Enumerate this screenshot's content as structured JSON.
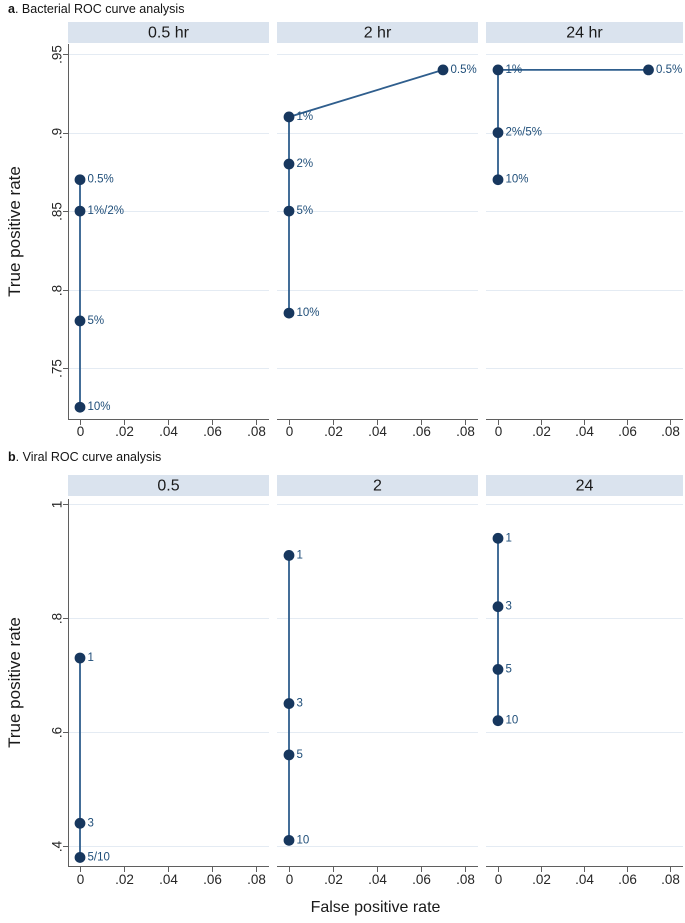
{
  "colors": {
    "marker": "#17375e",
    "line": "#2f5e8d",
    "point_label": "#1f4e79",
    "header_bg": "#dae3ee",
    "header_text": "#1a1a1a",
    "grid": "#e4ebf3",
    "axis": "#5f5f5f",
    "tick_text": "#262626",
    "axis_title_text": "#1a1a1a"
  },
  "chart_data": [
    {
      "type": "scatter",
      "title_prefix": "a",
      "title_rest": ". Bacterial ROC curve analysis",
      "xlabel": "",
      "ylabel": "True positive rate",
      "x_ticks": [
        0,
        0.02,
        0.04,
        0.06,
        0.08
      ],
      "x_tick_labels": [
        "0",
        ".02",
        ".04",
        ".06",
        ".08"
      ],
      "y_ticks": [
        0.75,
        0.8,
        0.85,
        0.9,
        0.95
      ],
      "y_tick_labels": [
        ".75",
        ".8",
        ".85",
        ".9",
        ".95"
      ],
      "xlim": [
        -0.0055,
        0.086
      ],
      "ylim": [
        0.7175,
        0.9565
      ],
      "grid": "horizontal",
      "legend": "none",
      "panels": [
        {
          "label": "0.5 hr",
          "points": [
            {
              "x": 0,
              "y": 0.87,
              "label": "0.5%"
            },
            {
              "x": 0,
              "y": 0.85,
              "label": "1%/2%"
            },
            {
              "x": 0,
              "y": 0.78,
              "label": "5%"
            },
            {
              "x": 0,
              "y": 0.725,
              "label": "10%"
            }
          ]
        },
        {
          "label": "2 hr",
          "points": [
            {
              "x": 0.07,
              "y": 0.94,
              "label": "0.5%"
            },
            {
              "x": 0,
              "y": 0.91,
              "label": "1%"
            },
            {
              "x": 0,
              "y": 0.88,
              "label": "2%"
            },
            {
              "x": 0,
              "y": 0.85,
              "label": "5%"
            },
            {
              "x": 0,
              "y": 0.785,
              "label": "10%"
            }
          ]
        },
        {
          "label": "24 hr",
          "points": [
            {
              "x": 0.07,
              "y": 0.94,
              "label": "0.5%"
            },
            {
              "x": 0,
              "y": 0.94,
              "label": "1%"
            },
            {
              "x": 0,
              "y": 0.9,
              "label": "2%/5%"
            },
            {
              "x": 0,
              "y": 0.87,
              "label": "10%"
            }
          ]
        }
      ]
    },
    {
      "type": "scatter",
      "title_prefix": "b",
      "title_rest": ". Viral ROC curve analysis",
      "xlabel": "False positive rate",
      "ylabel": "True positive rate",
      "x_ticks": [
        0,
        0.02,
        0.04,
        0.06,
        0.08
      ],
      "x_tick_labels": [
        "0",
        ".02",
        ".04",
        ".06",
        ".08"
      ],
      "y_ticks": [
        0.4,
        0.6,
        0.8,
        1
      ],
      "y_tick_labels": [
        ".4",
        ".6",
        ".8",
        "1"
      ],
      "xlim": [
        -0.0055,
        0.086
      ],
      "ylim": [
        0.365,
        1.009
      ],
      "grid": "horizontal",
      "legend": "none",
      "panels": [
        {
          "label": "0.5",
          "points": [
            {
              "x": 0,
              "y": 0.73,
              "label": "1"
            },
            {
              "x": 0,
              "y": 0.44,
              "label": "3"
            },
            {
              "x": 0,
              "y": 0.38,
              "label": "5/10"
            }
          ]
        },
        {
          "label": "2",
          "points": [
            {
              "x": 0,
              "y": 0.91,
              "label": "1"
            },
            {
              "x": 0,
              "y": 0.65,
              "label": "3"
            },
            {
              "x": 0,
              "y": 0.56,
              "label": "5"
            },
            {
              "x": 0,
              "y": 0.41,
              "label": "10"
            }
          ]
        },
        {
          "label": "24",
          "points": [
            {
              "x": 0,
              "y": 0.94,
              "label": "1"
            },
            {
              "x": 0,
              "y": 0.82,
              "label": "3"
            },
            {
              "x": 0,
              "y": 0.71,
              "label": "5"
            },
            {
              "x": 0,
              "y": 0.62,
              "label": "10"
            }
          ]
        }
      ]
    }
  ]
}
